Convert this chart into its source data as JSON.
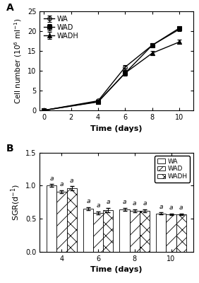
{
  "panel_A": {
    "days": [
      0,
      4,
      6,
      8,
      10
    ],
    "WA": [
      0.1,
      2.5,
      11.0,
      16.5,
      20.5
    ],
    "WAD": [
      0.1,
      2.2,
      9.5,
      16.5,
      20.8
    ],
    "WADH": [
      0.1,
      2.3,
      9.5,
      14.5,
      17.3
    ],
    "WA_err": [
      0.05,
      0.2,
      0.5,
      0.4,
      0.4
    ],
    "WAD_err": [
      0.05,
      0.2,
      0.7,
      0.5,
      0.4
    ],
    "WADH_err": [
      0.05,
      0.2,
      0.5,
      0.6,
      0.5
    ],
    "ylabel": "Cell number (10$^6$ ml$^{-1}$)",
    "xlabel": "Time (days)",
    "ylim": [
      0,
      25
    ],
    "xlim": [
      -0.3,
      11
    ],
    "yticks": [
      0,
      5,
      10,
      15,
      20,
      25
    ],
    "xticks": [
      0,
      2,
      4,
      6,
      8,
      10
    ]
  },
  "panel_B": {
    "days": [
      4,
      6,
      8,
      10
    ],
    "WA": [
      1.0,
      0.65,
      0.64,
      0.58
    ],
    "WAD": [
      0.91,
      0.59,
      0.62,
      0.57
    ],
    "WADH": [
      0.96,
      0.63,
      0.62,
      0.57
    ],
    "WA_err": [
      0.02,
      0.02,
      0.02,
      0.015
    ],
    "WAD_err": [
      0.02,
      0.02,
      0.02,
      0.01
    ],
    "WADH_err": [
      0.03,
      0.03,
      0.02,
      0.01
    ],
    "ylabel": "SGR(d$^{-1}$)",
    "xlabel": "Time (days)",
    "ylim": [
      0.0,
      1.5
    ],
    "yticks": [
      0.0,
      0.5,
      1.0,
      1.5
    ],
    "bar_width": 0.55,
    "group_positions": [
      4,
      6,
      8,
      10
    ],
    "annotations_WA": [
      "a",
      "a",
      "a",
      "a"
    ],
    "annotations_WAD": [
      "a",
      "a",
      "a",
      "a"
    ],
    "annotations_WADH": [
      "a",
      "a",
      "a",
      "a"
    ]
  },
  "font_size": 8,
  "label_fontsize": 8,
  "tick_fontsize": 7,
  "background": "#ffffff"
}
